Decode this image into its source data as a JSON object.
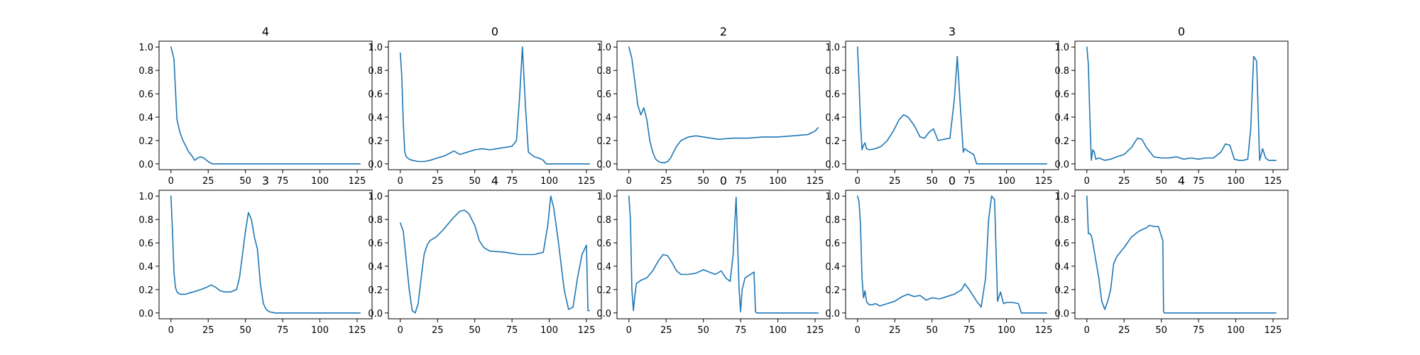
{
  "chart_data": [
    {
      "type": "line",
      "title": "4",
      "xlim": [
        -8,
        135
      ],
      "ylim": [
        -0.05,
        1.05
      ],
      "xticks": [
        0,
        25,
        50,
        75,
        100,
        125
      ],
      "yticks": [
        0.0,
        0.2,
        0.4,
        0.6,
        0.8,
        1.0
      ],
      "x": [
        0,
        2,
        4,
        6,
        8,
        10,
        12,
        14,
        16,
        18,
        20,
        22,
        24,
        26,
        28,
        30,
        40,
        60,
        80,
        100,
        127
      ],
      "y": [
        1.0,
        0.9,
        0.38,
        0.27,
        0.2,
        0.15,
        0.1,
        0.07,
        0.03,
        0.05,
        0.06,
        0.05,
        0.03,
        0.01,
        0.0,
        0.0,
        0.0,
        0.0,
        0.0,
        0.0,
        0.0
      ]
    },
    {
      "type": "line",
      "title": "0",
      "xlim": [
        -8,
        135
      ],
      "ylim": [
        -0.05,
        1.05
      ],
      "xticks": [
        0,
        25,
        50,
        75,
        100,
        125
      ],
      "yticks": [
        0.0,
        0.2,
        0.4,
        0.6,
        0.8,
        1.0
      ],
      "x": [
        0,
        1,
        2,
        3,
        4,
        6,
        8,
        12,
        16,
        20,
        25,
        30,
        36,
        40,
        45,
        50,
        55,
        60,
        65,
        70,
        75,
        78,
        80,
        82,
        84,
        86,
        90,
        93,
        96,
        98,
        100,
        110,
        127
      ],
      "y": [
        0.95,
        0.75,
        0.35,
        0.1,
        0.06,
        0.04,
        0.03,
        0.02,
        0.02,
        0.03,
        0.05,
        0.07,
        0.11,
        0.08,
        0.1,
        0.12,
        0.13,
        0.12,
        0.13,
        0.14,
        0.15,
        0.2,
        0.55,
        1.0,
        0.5,
        0.1,
        0.06,
        0.05,
        0.03,
        0.0,
        0.0,
        0.0,
        0.0
      ]
    },
    {
      "type": "line",
      "title": "2",
      "xlim": [
        -8,
        135
      ],
      "ylim": [
        -0.05,
        1.05
      ],
      "xticks": [
        0,
        25,
        50,
        75,
        100,
        125
      ],
      "yticks": [
        0.0,
        0.2,
        0.4,
        0.6,
        0.8,
        1.0
      ],
      "x": [
        0,
        2,
        4,
        6,
        8,
        10,
        12,
        14,
        16,
        18,
        20,
        22,
        24,
        26,
        28,
        30,
        32,
        35,
        40,
        45,
        50,
        60,
        70,
        80,
        90,
        100,
        110,
        120,
        125,
        127
      ],
      "y": [
        1.0,
        0.9,
        0.7,
        0.5,
        0.42,
        0.48,
        0.38,
        0.2,
        0.1,
        0.04,
        0.02,
        0.01,
        0.01,
        0.02,
        0.05,
        0.1,
        0.15,
        0.2,
        0.23,
        0.24,
        0.23,
        0.21,
        0.22,
        0.22,
        0.23,
        0.23,
        0.24,
        0.25,
        0.28,
        0.31
      ]
    },
    {
      "type": "line",
      "title": "3",
      "xlim": [
        -8,
        135
      ],
      "ylim": [
        -0.05,
        1.05
      ],
      "xticks": [
        0,
        25,
        50,
        75,
        100,
        125
      ],
      "yticks": [
        0.0,
        0.2,
        0.4,
        0.6,
        0.8,
        1.0
      ],
      "x": [
        0,
        1,
        2,
        3,
        4,
        5,
        6,
        8,
        12,
        16,
        20,
        24,
        28,
        31,
        34,
        38,
        42,
        45,
        48,
        51,
        54,
        58,
        62,
        65,
        67,
        69,
        71,
        72,
        74,
        78,
        80,
        100,
        127
      ],
      "y": [
        1.0,
        0.7,
        0.35,
        0.12,
        0.16,
        0.18,
        0.13,
        0.12,
        0.13,
        0.15,
        0.2,
        0.28,
        0.38,
        0.42,
        0.4,
        0.33,
        0.23,
        0.22,
        0.27,
        0.3,
        0.2,
        0.21,
        0.22,
        0.55,
        0.92,
        0.5,
        0.1,
        0.13,
        0.11,
        0.08,
        0.0,
        0.0,
        0.0
      ]
    },
    {
      "type": "line",
      "title": "0",
      "xlim": [
        -8,
        135
      ],
      "ylim": [
        -0.05,
        1.05
      ],
      "xticks": [
        0,
        25,
        50,
        75,
        100,
        125
      ],
      "yticks": [
        0.0,
        0.2,
        0.4,
        0.6,
        0.8,
        1.0
      ],
      "x": [
        0,
        1,
        2,
        3,
        4,
        5,
        6,
        8,
        12,
        16,
        20,
        25,
        30,
        34,
        37,
        40,
        45,
        50,
        55,
        60,
        65,
        70,
        75,
        80,
        85,
        90,
        93,
        96,
        99,
        102,
        105,
        108,
        110,
        112,
        114,
        116,
        118,
        120,
        122,
        124,
        127
      ],
      "y": [
        1.0,
        0.85,
        0.4,
        0.03,
        0.12,
        0.1,
        0.04,
        0.05,
        0.03,
        0.04,
        0.06,
        0.08,
        0.14,
        0.22,
        0.21,
        0.14,
        0.06,
        0.05,
        0.05,
        0.06,
        0.04,
        0.05,
        0.04,
        0.05,
        0.05,
        0.1,
        0.17,
        0.16,
        0.04,
        0.03,
        0.03,
        0.04,
        0.3,
        0.92,
        0.88,
        0.03,
        0.13,
        0.05,
        0.03,
        0.03,
        0.03
      ]
    },
    {
      "type": "line",
      "title": "3",
      "xlim": [
        -8,
        135
      ],
      "ylim": [
        -0.05,
        1.05
      ],
      "xticks": [
        0,
        25,
        50,
        75,
        100,
        125
      ],
      "yticks": [
        0.0,
        0.2,
        0.4,
        0.6,
        0.8,
        1.0
      ],
      "x": [
        0,
        1,
        2,
        3,
        4,
        6,
        8,
        10,
        12,
        15,
        20,
        24,
        27,
        30,
        33,
        36,
        40,
        44,
        46,
        48,
        50,
        52,
        54,
        56,
        58,
        60,
        62,
        64,
        66,
        70,
        80,
        100,
        127
      ],
      "y": [
        1.0,
        0.7,
        0.35,
        0.22,
        0.18,
        0.16,
        0.16,
        0.16,
        0.17,
        0.18,
        0.2,
        0.22,
        0.24,
        0.22,
        0.19,
        0.18,
        0.18,
        0.2,
        0.3,
        0.5,
        0.7,
        0.86,
        0.8,
        0.65,
        0.55,
        0.25,
        0.08,
        0.03,
        0.01,
        0.0,
        0.0,
        0.0,
        0.0
      ]
    },
    {
      "type": "line",
      "title": "4",
      "xlim": [
        -8,
        135
      ],
      "ylim": [
        -0.05,
        1.05
      ],
      "xticks": [
        0,
        25,
        50,
        75,
        100,
        125
      ],
      "yticks": [
        0.0,
        0.2,
        0.4,
        0.6,
        0.8,
        1.0
      ],
      "x": [
        0,
        2,
        4,
        6,
        8,
        10,
        12,
        14,
        16,
        18,
        20,
        24,
        28,
        32,
        36,
        40,
        43,
        46,
        50,
        53,
        56,
        60,
        70,
        80,
        90,
        96,
        99,
        101,
        103,
        106,
        110,
        113,
        116,
        119,
        122,
        125,
        126,
        127
      ],
      "y": [
        0.77,
        0.7,
        0.45,
        0.2,
        0.02,
        0.0,
        0.08,
        0.3,
        0.5,
        0.58,
        0.62,
        0.65,
        0.7,
        0.76,
        0.82,
        0.87,
        0.88,
        0.85,
        0.75,
        0.62,
        0.56,
        0.53,
        0.52,
        0.5,
        0.5,
        0.52,
        0.75,
        1.0,
        0.9,
        0.62,
        0.2,
        0.03,
        0.05,
        0.3,
        0.5,
        0.58,
        0.02,
        0.02
      ]
    },
    {
      "type": "line",
      "title": "0",
      "xlim": [
        -8,
        135
      ],
      "ylim": [
        -0.05,
        1.05
      ],
      "xticks": [
        0,
        25,
        50,
        75,
        100,
        125
      ],
      "yticks": [
        0.0,
        0.2,
        0.4,
        0.6,
        0.8,
        1.0
      ],
      "x": [
        0,
        1,
        2,
        3,
        4,
        5,
        6,
        8,
        12,
        16,
        20,
        23,
        26,
        29,
        32,
        35,
        40,
        45,
        50,
        54,
        58,
        62,
        65,
        68,
        70,
        72,
        74,
        75,
        76,
        78,
        84,
        85,
        86,
        100,
        127
      ],
      "y": [
        1.0,
        0.8,
        0.2,
        0.02,
        0.15,
        0.25,
        0.26,
        0.28,
        0.3,
        0.36,
        0.45,
        0.5,
        0.49,
        0.43,
        0.36,
        0.33,
        0.33,
        0.34,
        0.37,
        0.35,
        0.33,
        0.36,
        0.3,
        0.27,
        0.5,
        0.99,
        0.2,
        0.01,
        0.2,
        0.3,
        0.35,
        0.01,
        0.0,
        0.0,
        0.0
      ]
    },
    {
      "type": "line",
      "title": "0",
      "xlim": [
        -8,
        135
      ],
      "ylim": [
        -0.05,
        1.05
      ],
      "xticks": [
        0,
        25,
        50,
        75,
        100,
        125
      ],
      "yticks": [
        0.0,
        0.2,
        0.4,
        0.6,
        0.8,
        1.0
      ],
      "x": [
        0,
        1,
        2,
        3,
        4,
        5,
        6,
        7,
        8,
        10,
        12,
        15,
        20,
        25,
        30,
        34,
        38,
        42,
        46,
        50,
        55,
        60,
        65,
        70,
        72,
        75,
        80,
        83,
        86,
        88,
        90,
        92,
        94,
        96,
        98,
        100,
        104,
        108,
        110,
        115,
        127
      ],
      "y": [
        1.0,
        0.95,
        0.75,
        0.3,
        0.13,
        0.19,
        0.1,
        0.08,
        0.07,
        0.07,
        0.08,
        0.06,
        0.08,
        0.1,
        0.14,
        0.16,
        0.14,
        0.15,
        0.11,
        0.13,
        0.12,
        0.14,
        0.16,
        0.2,
        0.25,
        0.2,
        0.1,
        0.05,
        0.3,
        0.8,
        1.0,
        0.97,
        0.1,
        0.18,
        0.08,
        0.09,
        0.09,
        0.08,
        0.0,
        0.0,
        0.0
      ]
    },
    {
      "type": "line",
      "title": "4",
      "xlim": [
        -8,
        135
      ],
      "ylim": [
        -0.05,
        1.05
      ],
      "xticks": [
        0,
        25,
        50,
        75,
        100,
        125
      ],
      "yticks": [
        0.0,
        0.2,
        0.4,
        0.6,
        0.8,
        1.0
      ],
      "x": [
        0,
        1,
        2,
        3,
        4,
        6,
        8,
        10,
        12,
        14,
        16,
        18,
        20,
        25,
        30,
        35,
        40,
        42,
        45,
        48,
        51,
        51.5,
        52,
        60,
        80,
        100,
        127
      ],
      "y": [
        1.0,
        0.68,
        0.68,
        0.66,
        0.6,
        0.45,
        0.3,
        0.1,
        0.03,
        0.1,
        0.2,
        0.42,
        0.48,
        0.56,
        0.65,
        0.7,
        0.73,
        0.75,
        0.74,
        0.74,
        0.62,
        0.01,
        0.0,
        0.0,
        0.0,
        0.0,
        0.0
      ]
    }
  ]
}
